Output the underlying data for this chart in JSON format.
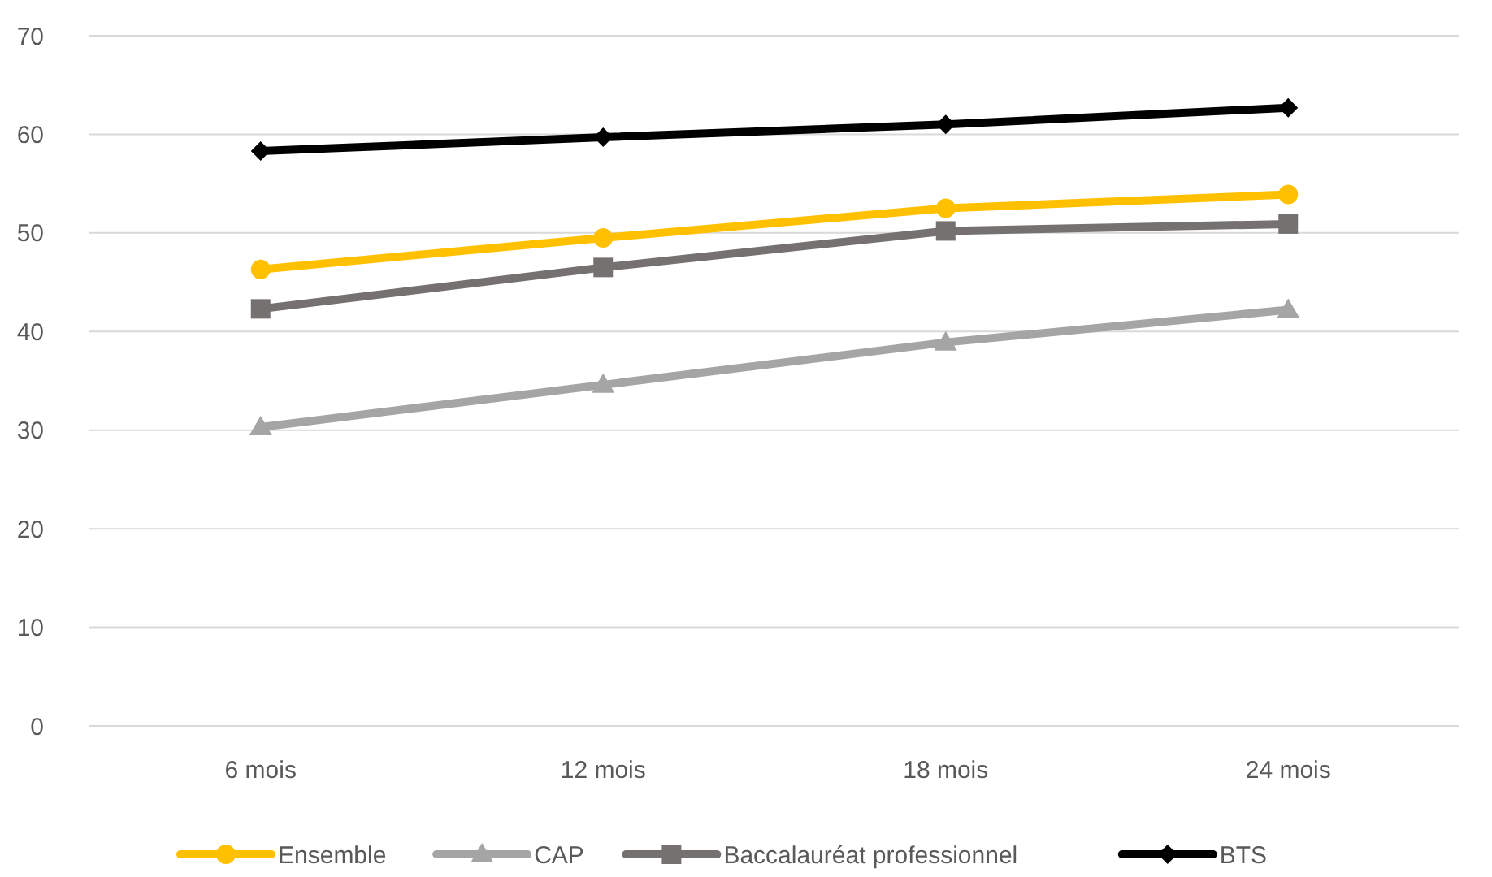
{
  "chart_data": {
    "type": "line",
    "categories": [
      "6 mois",
      "12 mois",
      "18 mois",
      "24 mois"
    ],
    "series": [
      {
        "name": "Ensemble",
        "color": "#ffc000",
        "marker": "circle",
        "values": [
          46.3,
          49.5,
          52.5,
          53.9
        ]
      },
      {
        "name": "CAP",
        "color": "#a5a5a5",
        "marker": "triangle",
        "values": [
          30.3,
          34.6,
          38.9,
          42.2
        ]
      },
      {
        "name": "Baccalauréat professionnel",
        "color": "#767171",
        "marker": "square",
        "values": [
          42.3,
          46.5,
          50.2,
          50.9
        ]
      },
      {
        "name": "BTS",
        "color": "#000000",
        "marker": "diamond",
        "values": [
          58.3,
          59.7,
          61.0,
          62.7
        ]
      }
    ],
    "ylim": [
      0,
      70
    ],
    "yticks": [
      0,
      10,
      20,
      30,
      40,
      50,
      60,
      70
    ],
    "grid": "y",
    "legend": "bottom"
  }
}
